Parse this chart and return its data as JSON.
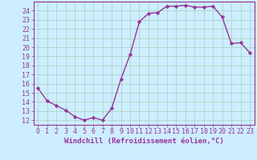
{
  "x": [
    0,
    1,
    2,
    3,
    4,
    5,
    6,
    7,
    8,
    9,
    10,
    11,
    12,
    13,
    14,
    15,
    16,
    17,
    18,
    19,
    20,
    21,
    22,
    23
  ],
  "y": [
    15.5,
    14.1,
    13.6,
    13.1,
    12.4,
    12.0,
    12.3,
    12.0,
    13.3,
    16.5,
    19.2,
    22.8,
    23.7,
    23.8,
    24.5,
    24.5,
    24.6,
    24.4,
    24.4,
    24.5,
    23.3,
    20.4,
    20.5,
    19.4
  ],
  "line_color": "#993399",
  "marker": "D",
  "marker_size": 2.2,
  "linewidth": 1.0,
  "xlabel": "Windchill (Refroidissement éolien,°C)",
  "xlim": [
    -0.5,
    23.5
  ],
  "ylim": [
    11.5,
    25.0
  ],
  "yticks": [
    12,
    13,
    14,
    15,
    16,
    17,
    18,
    19,
    20,
    21,
    22,
    23,
    24
  ],
  "xticks": [
    0,
    1,
    2,
    3,
    4,
    5,
    6,
    7,
    8,
    9,
    10,
    11,
    12,
    13,
    14,
    15,
    16,
    17,
    18,
    19,
    20,
    21,
    22,
    23
  ],
  "xtick_labels": [
    "0",
    "1",
    "2",
    "3",
    "4",
    "5",
    "6",
    "7",
    "8",
    "9",
    "10",
    "11",
    "12",
    "13",
    "14",
    "15",
    "16",
    "17",
    "18",
    "19",
    "20",
    "21",
    "22",
    "23"
  ],
  "bg_color": "#cceeff",
  "grid_color": "#aaccbb",
  "line_border_color": "#993399",
  "tick_color": "#993399",
  "label_color": "#993399",
  "xlabel_fontsize": 6.5,
  "tick_fontsize": 6.0
}
